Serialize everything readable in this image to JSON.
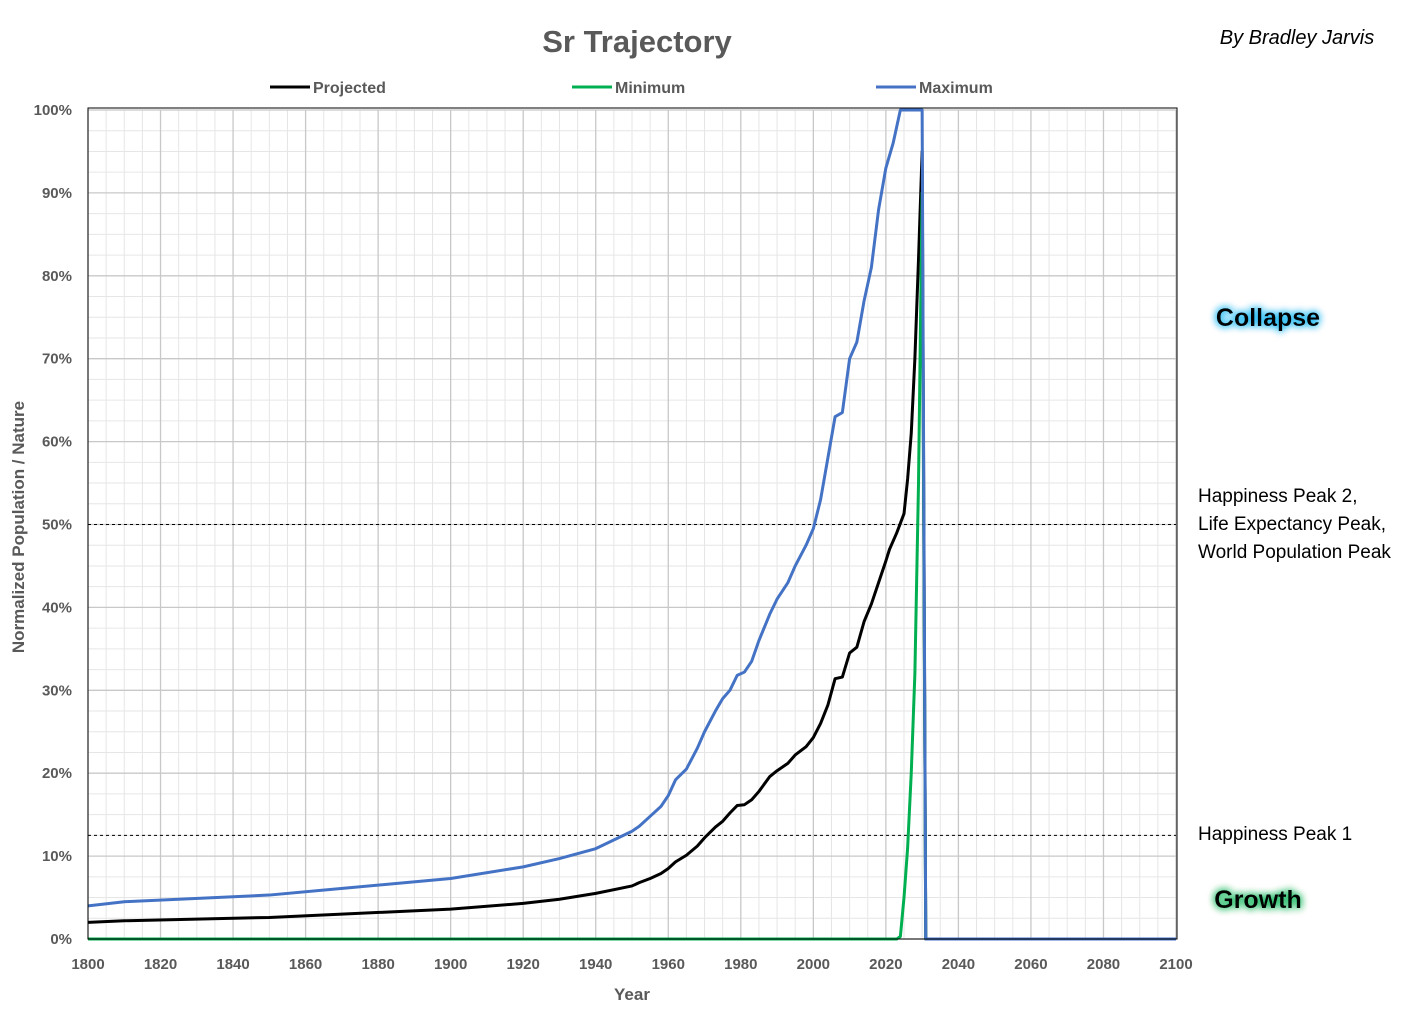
{
  "chart_data": {
    "type": "line",
    "title": "Sr Trajectory",
    "author": "By Bradley Jarvis",
    "xlabel": "Year",
    "ylabel": "Normalized Population / Nature",
    "xlim": [
      1800,
      2100
    ],
    "ylim": [
      0,
      1
    ],
    "x_ticks": [
      "1800",
      "1820",
      "1840",
      "1860",
      "1880",
      "1900",
      "1920",
      "1940",
      "1960",
      "1980",
      "2000",
      "2020",
      "2040",
      "2060",
      "2080",
      "2100"
    ],
    "y_ticks": [
      "0%",
      "10%",
      "20%",
      "30%",
      "40%",
      "50%",
      "60%",
      "70%",
      "80%",
      "90%",
      "100%"
    ],
    "grid": true,
    "legend_position": "top",
    "series": [
      {
        "name": "Projected",
        "color": "#000000",
        "x": [
          1800,
          1810,
          1850,
          1900,
          1920,
          1930,
          1940,
          1950,
          1952,
          1955,
          1958,
          1960,
          1962,
          1965,
          1968,
          1970,
          1973,
          1975,
          1977,
          1979,
          1981,
          1983,
          1985,
          1988,
          1990,
          1993,
          1995,
          1998,
          2000,
          2002,
          2004,
          2006,
          2008,
          2010,
          2012,
          2014,
          2016,
          2018,
          2020,
          2021,
          2023,
          2025,
          2026,
          2027,
          2028,
          2029,
          2030,
          2031,
          2040,
          2060,
          2080,
          2100
        ],
        "values": [
          0.02,
          0.022,
          0.026,
          0.036,
          0.043,
          0.048,
          0.055,
          0.064,
          0.068,
          0.073,
          0.079,
          0.085,
          0.093,
          0.101,
          0.112,
          0.122,
          0.135,
          0.142,
          0.152,
          0.161,
          0.162,
          0.168,
          0.178,
          0.196,
          0.203,
          0.212,
          0.222,
          0.232,
          0.243,
          0.26,
          0.282,
          0.314,
          0.316,
          0.345,
          0.352,
          0.383,
          0.404,
          0.43,
          0.456,
          0.47,
          0.49,
          0.513,
          0.555,
          0.61,
          0.7,
          0.82,
          0.95,
          0,
          0,
          0,
          0,
          0
        ]
      },
      {
        "name": "Minimum",
        "color": "#00b050",
        "x": [
          1800,
          1900,
          2000,
          2023,
          2024,
          2025,
          2026,
          2027,
          2028,
          2029,
          2030,
          2031,
          2040,
          2100
        ],
        "values": [
          0,
          0,
          0,
          0,
          0.003,
          0.05,
          0.11,
          0.2,
          0.32,
          0.55,
          0.9,
          0,
          0,
          0
        ]
      },
      {
        "name": "Maximum",
        "color": "#4472c4",
        "x": [
          1800,
          1810,
          1850,
          1900,
          1920,
          1930,
          1940,
          1950,
          1952,
          1955,
          1958,
          1960,
          1962,
          1965,
          1968,
          1970,
          1973,
          1975,
          1977,
          1979,
          1981,
          1983,
          1985,
          1988,
          1990,
          1993,
          1995,
          1998,
          2000,
          2002,
          2004,
          2006,
          2008,
          2010,
          2012,
          2014,
          2016,
          2018,
          2020,
          2022,
          2023,
          2024,
          2025,
          2030,
          2031,
          2040,
          2060,
          2080,
          2100
        ],
        "values": [
          0.04,
          0.045,
          0.053,
          0.073,
          0.087,
          0.097,
          0.109,
          0.13,
          0.136,
          0.148,
          0.16,
          0.173,
          0.192,
          0.205,
          0.23,
          0.25,
          0.275,
          0.29,
          0.3,
          0.318,
          0.322,
          0.335,
          0.36,
          0.392,
          0.41,
          0.43,
          0.45,
          0.475,
          0.495,
          0.53,
          0.58,
          0.63,
          0.635,
          0.7,
          0.72,
          0.77,
          0.81,
          0.88,
          0.93,
          0.96,
          0.98,
          1.0,
          1.0,
          1.0,
          0,
          0,
          0,
          0,
          0
        ]
      }
    ],
    "reference_lines": [
      {
        "y": 0.5,
        "style": "dashed",
        "label_lines": [
          "Happiness Peak 2,",
          "Life Expectancy Peak,",
          "World Population Peak"
        ]
      },
      {
        "y": 0.125,
        "style": "dashed",
        "label_lines": [
          "Happiness Peak 1"
        ]
      }
    ],
    "phase_labels": [
      {
        "text": "Collapse",
        "glow": "#00b0f0"
      },
      {
        "text": "Growth",
        "glow": "#00b050"
      }
    ]
  }
}
